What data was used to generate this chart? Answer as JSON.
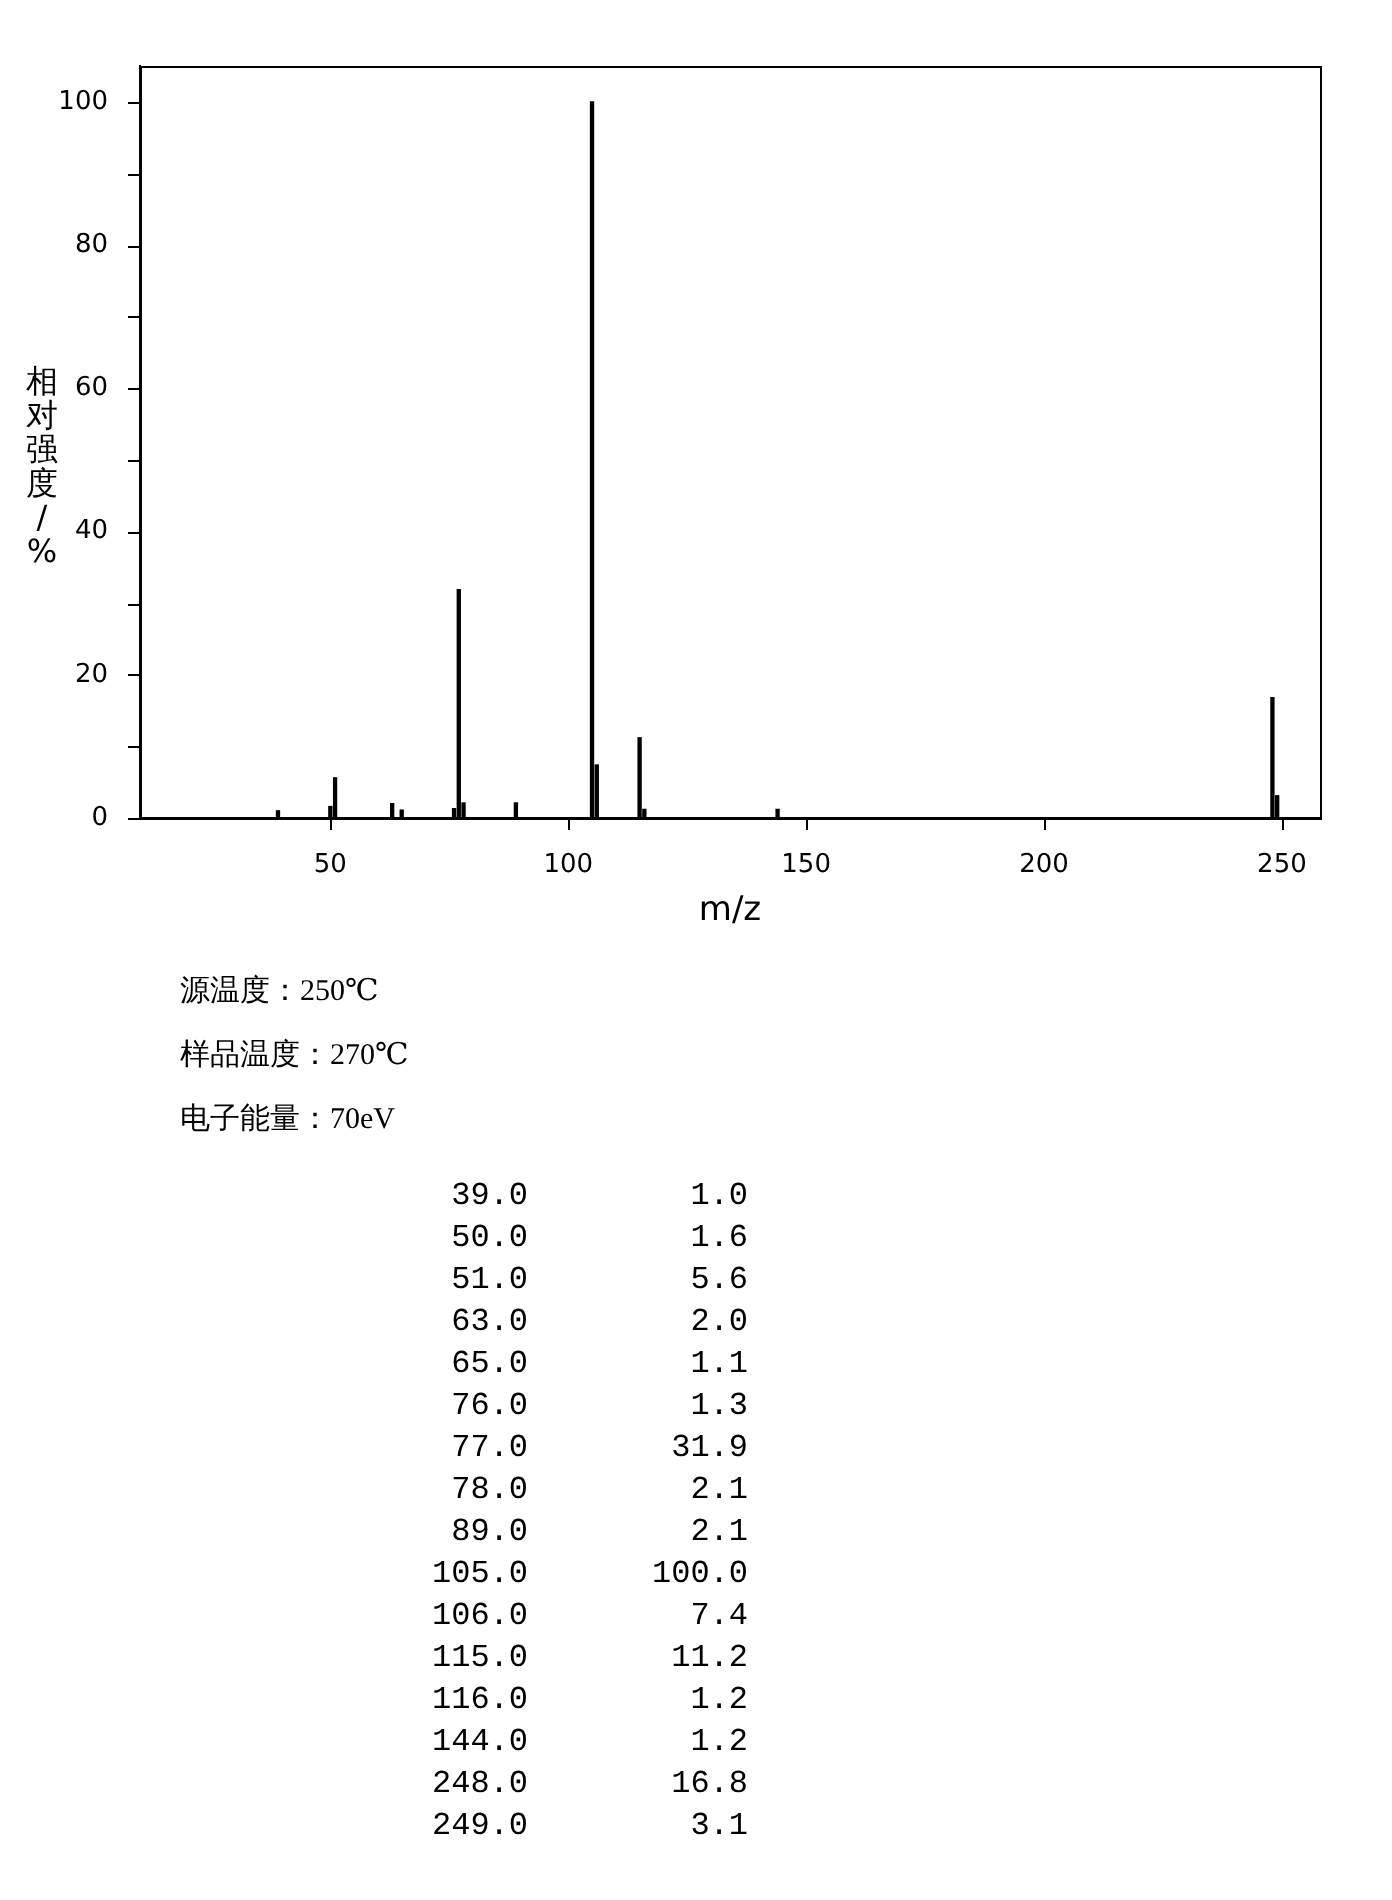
{
  "chart_data": [
    {
      "type": "bar",
      "xlabel": "m/z",
      "ylabel": "相对强度/%",
      "x": [
        39,
        50,
        51,
        63,
        65,
        76,
        77,
        78,
        89,
        105,
        106,
        115,
        116,
        144,
        248,
        249
      ],
      "values": [
        1.0,
        1.6,
        5.6,
        2.0,
        1.1,
        1.3,
        31.9,
        2.1,
        2.1,
        100.0,
        7.4,
        11.2,
        1.2,
        1.2,
        16.8,
        3.1
      ],
      "color": "#000000",
      "xlim": [
        10,
        258
      ],
      "xticks": [
        50,
        100,
        150,
        200,
        250
      ],
      "ylim": [
        0,
        105
      ],
      "yticks": [
        0,
        {
          "value": 10,
          "label": null
        },
        20,
        {
          "value": 30,
          "label": null
        },
        40,
        {
          "value": 50,
          "label": null
        },
        60,
        {
          "value": 70,
          "label": null
        },
        80,
        {
          "value": 90,
          "label": null
        },
        100
      ]
    },
    {
      "type": "other",
      "annotations": [
        "源温度：250℃",
        "样品温度：270℃",
        "电子能量：70eV"
      ],
      "categories": [
        "39.0",
        "50.0",
        "51.0",
        "63.0",
        "65.0",
        "76.0",
        "77.0",
        "78.0",
        "89.0",
        "105.0",
        "106.0",
        "115.0",
        "116.0",
        "144.0",
        "248.0",
        "249.0"
      ],
      "value_labels": [
        "1.0",
        "1.6",
        "5.6",
        "2.0",
        "1.1",
        "1.3",
        "31.9",
        "2.1",
        "2.1",
        "100.0",
        "7.4",
        "11.2",
        "1.2",
        "1.2",
        "16.8",
        "3.1"
      ]
    }
  ]
}
